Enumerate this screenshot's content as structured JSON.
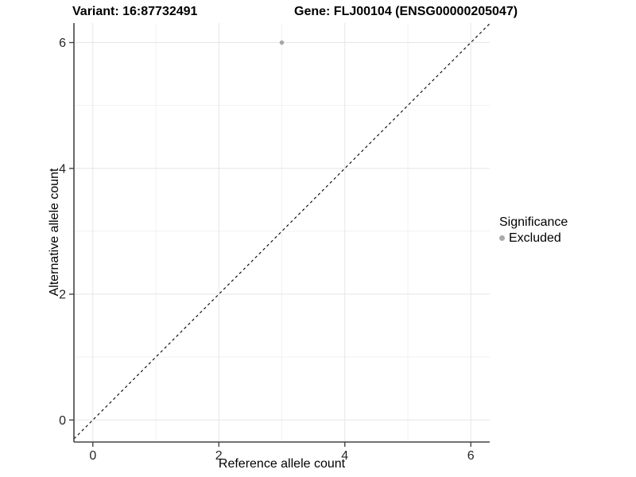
{
  "titles": {
    "variant": "Variant: 16:87732491",
    "gene": "Gene: FLJ00104 (ENSG00000205047)"
  },
  "legend": {
    "title": "Significance",
    "items": [
      {
        "label": "Excluded",
        "color": "#a9a9a9"
      }
    ]
  },
  "chart_data": {
    "type": "scatter",
    "title": "Variant: 16:87732491  Gene: FLJ00104 (ENSG00000205047)",
    "xlabel": "Reference allele count",
    "ylabel": "Alternative allele count",
    "xlim": [
      -0.3,
      6.3
    ],
    "ylim": [
      -0.35,
      6.31
    ],
    "x_major_ticks": [
      0,
      2,
      4,
      6
    ],
    "y_major_ticks": [
      0,
      2,
      4,
      6
    ],
    "x_minor_gridlines": [
      1,
      3,
      5
    ],
    "y_minor_gridlines": [
      1,
      3,
      5
    ],
    "grid": "major and minor, light gray on white",
    "legend_position": "right",
    "series": [
      {
        "name": "Excluded",
        "color": "#a9a9a9",
        "points": [
          {
            "x": 3,
            "y": 6
          }
        ]
      }
    ],
    "reference_line": {
      "kind": "identity y=x",
      "style": "dashed",
      "color": "#000000"
    },
    "colors": {
      "background": "#ffffff",
      "grid_major": "#e6e6e6",
      "grid_minor": "#f1f1f1",
      "axis_line": "#444444",
      "tick_mark": "#444444",
      "tick_label": "#262626",
      "point": "#a9a9a9"
    }
  }
}
